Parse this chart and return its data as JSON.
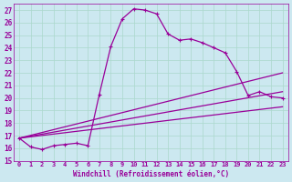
{
  "xlabel": "Windchill (Refroidissement éolien,°C)",
  "xlim": [
    -0.5,
    23.5
  ],
  "ylim": [
    15,
    27.5
  ],
  "yticks": [
    15,
    16,
    17,
    18,
    19,
    20,
    21,
    22,
    23,
    24,
    25,
    26,
    27
  ],
  "xticks": [
    0,
    1,
    2,
    3,
    4,
    5,
    6,
    7,
    8,
    9,
    10,
    11,
    12,
    13,
    14,
    15,
    16,
    17,
    18,
    19,
    20,
    21,
    22,
    23
  ],
  "bg_color": "#cce8f0",
  "line_color": "#990099",
  "grid_color": "#aad8cc",
  "lines": [
    {
      "x": [
        0,
        1,
        2,
        3,
        4,
        5,
        6,
        7,
        8,
        9,
        10,
        11,
        12,
        13,
        14,
        15,
        16,
        17,
        18,
        19,
        20,
        21,
        22,
        23
      ],
      "y": [
        16.8,
        16.1,
        15.9,
        16.2,
        16.3,
        16.4,
        16.2,
        20.3,
        24.1,
        26.3,
        27.1,
        27.0,
        26.7,
        25.1,
        24.6,
        24.7,
        24.4,
        24.0,
        23.6,
        22.1,
        20.2,
        20.5,
        20.1,
        20.0
      ],
      "marker": "+",
      "lw": 0.9
    },
    {
      "x": [
        0,
        23
      ],
      "y": [
        16.8,
        22.0
      ],
      "marker": null,
      "lw": 0.9
    },
    {
      "x": [
        0,
        23
      ],
      "y": [
        16.8,
        20.5
      ],
      "marker": null,
      "lw": 0.9
    },
    {
      "x": [
        0,
        23
      ],
      "y": [
        16.8,
        19.3
      ],
      "marker": null,
      "lw": 0.9
    }
  ]
}
